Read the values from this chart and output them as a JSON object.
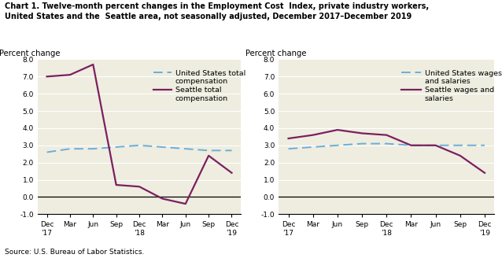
{
  "title": "Chart 1. Twelve-month percent changes in the Employment Cost  Index, private industry workers,\nUnited States and the  Seattle area, not seasonally adjusted, December 2017–December 2019",
  "ylabel": "Percent change",
  "source": "Source: U.S. Bureau of Labor Statistics.",
  "x_labels": [
    "Dec\n'17",
    "Mar",
    "Jun",
    "Sep",
    "Dec\n'18",
    "Mar",
    "Jun",
    "Sep",
    "Dec\n'19"
  ],
  "ylim": [
    -1.0,
    8.0
  ],
  "yticks": [
    -1.0,
    0.0,
    1.0,
    2.0,
    3.0,
    4.0,
    5.0,
    6.0,
    7.0,
    8.0
  ],
  "left_us_total": [
    2.6,
    2.8,
    2.8,
    2.9,
    3.0,
    2.9,
    2.8,
    2.7,
    2.7
  ],
  "left_seattle_total": [
    7.0,
    7.1,
    7.7,
    0.7,
    0.6,
    -0.1,
    -0.4,
    2.4,
    1.4
  ],
  "left_legend1": "United States total\ncompensation",
  "left_legend2": "Seattle total\ncompensation",
  "right_us_wages": [
    2.8,
    2.9,
    3.0,
    3.1,
    3.1,
    3.0,
    3.0,
    3.0,
    3.0
  ],
  "right_seattle_wages": [
    3.4,
    3.6,
    3.9,
    3.7,
    3.6,
    3.0,
    3.0,
    2.4,
    1.4
  ],
  "right_legend1": "United States wages\nand salaries",
  "right_legend2": "Seattle wages and\nsalaries",
  "us_color": "#6baed6",
  "seattle_color": "#7b2060",
  "background_color": "#eeede0",
  "grid_color": "#ffffff",
  "title_fontsize": 7.0,
  "tick_fontsize": 6.5,
  "ylabel_fontsize": 7.2,
  "legend_fontsize": 6.8,
  "source_fontsize": 6.5
}
